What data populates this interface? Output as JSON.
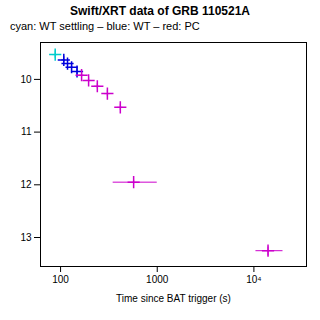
{
  "chart_data": {
    "type": "scatter",
    "title": "Swift/XRT data of GRB 110521A",
    "subtitle": "cyan: WT settling – blue: WT – red: PC",
    "xlabel": "Time since BAT trigger (s)",
    "log": "x",
    "marker": "+",
    "xlim": [
      62,
      35000
    ],
    "ylim": [
      13.55,
      9.3
    ],
    "xticks": [
      100,
      1000,
      {
        "value": 10000,
        "label": "10⁴"
      }
    ],
    "yticks": [
      10,
      11,
      12,
      13
    ],
    "series": [
      {
        "color": "#00cccc",
        "x": [
          88
        ],
        "values": [
          9.53
        ],
        "xerr_lo": [
          5
        ],
        "xerr_hi": [
          5
        ],
        "yerr_lo": [
          0.07
        ],
        "yerr_hi": [
          0.07
        ]
      },
      {
        "color": "#0000dd",
        "x": [
          108,
          118,
          130,
          148
        ],
        "values": [
          9.63,
          9.7,
          9.77,
          9.85
        ],
        "xerr_lo": [
          5,
          5,
          6,
          7
        ],
        "xerr_hi": [
          5,
          5,
          6,
          7
        ],
        "yerr_lo": [
          0.06,
          0.06,
          0.06,
          0.06
        ],
        "yerr_hi": [
          0.06,
          0.06,
          0.06,
          0.06
        ]
      },
      {
        "color": "#cc00cc",
        "x": [
          165,
          195,
          240,
          305,
          415,
          570,
          14000
        ],
        "values": [
          9.92,
          10.02,
          10.13,
          10.27,
          10.53,
          11.95,
          13.25
        ],
        "xerr_lo": [
          10,
          12,
          15,
          20,
          28,
          220,
          3500
        ],
        "xerr_hi": [
          10,
          12,
          15,
          20,
          28,
          430,
          6000
        ],
        "yerr_lo": [
          0.05,
          0.05,
          0.05,
          0.06,
          0.06,
          0.035,
          0.07
        ],
        "yerr_hi": [
          0.05,
          0.05,
          0.05,
          0.06,
          0.06,
          0.035,
          0.1
        ]
      }
    ]
  }
}
